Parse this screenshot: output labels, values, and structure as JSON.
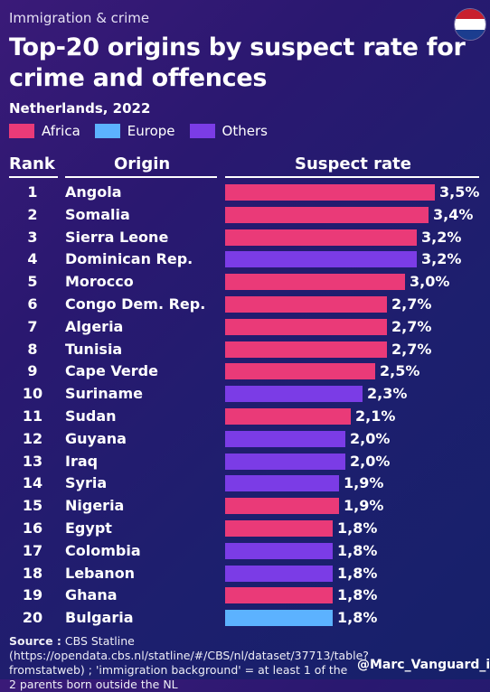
{
  "header": {
    "supertitle": "Immigration & crime",
    "title": "Top-20 origins by suspect rate for crime and offences",
    "subtitle": "Netherlands, 2022"
  },
  "legend": [
    {
      "label": "Africa",
      "color": "#ea3a78"
    },
    {
      "label": "Europe",
      "color": "#5cb2ff"
    },
    {
      "label": "Others",
      "color": "#7b3ce6"
    }
  ],
  "columns": {
    "rank": "Rank",
    "origin": "Origin",
    "rate": "Suspect rate"
  },
  "chart_data": {
    "type": "bar",
    "orientation": "horizontal",
    "title": "Top-20 origins by suspect rate for crime and offences",
    "unit": "%",
    "xlim": [
      0,
      3.5
    ],
    "rows": [
      {
        "rank": "1",
        "origin": "Angola",
        "value": 3.5,
        "label": "3,5%",
        "group": "Africa"
      },
      {
        "rank": "2",
        "origin": "Somalia",
        "value": 3.4,
        "label": "3,4%",
        "group": "Africa"
      },
      {
        "rank": "3",
        "origin": "Sierra Leone",
        "value": 3.2,
        "label": "3,2%",
        "group": "Africa"
      },
      {
        "rank": "4",
        "origin": "Dominican Rep.",
        "value": 3.2,
        "label": "3,2%",
        "group": "Others"
      },
      {
        "rank": "5",
        "origin": "Morocco",
        "value": 3.0,
        "label": "3,0%",
        "group": "Africa"
      },
      {
        "rank": "6",
        "origin": "Congo Dem. Rep.",
        "value": 2.7,
        "label": "2,7%",
        "group": "Africa"
      },
      {
        "rank": "7",
        "origin": "Algeria",
        "value": 2.7,
        "label": "2,7%",
        "group": "Africa"
      },
      {
        "rank": "8",
        "origin": "Tunisia",
        "value": 2.7,
        "label": "2,7%",
        "group": "Africa"
      },
      {
        "rank": "9",
        "origin": "Cape Verde",
        "value": 2.5,
        "label": "2,5%",
        "group": "Africa"
      },
      {
        "rank": "10",
        "origin": "Suriname",
        "value": 2.3,
        "label": "2,3%",
        "group": "Others"
      },
      {
        "rank": "11",
        "origin": "Sudan",
        "value": 2.1,
        "label": "2,1%",
        "group": "Africa"
      },
      {
        "rank": "12",
        "origin": "Guyana",
        "value": 2.0,
        "label": "2,0%",
        "group": "Others"
      },
      {
        "rank": "13",
        "origin": "Iraq",
        "value": 2.0,
        "label": "2,0%",
        "group": "Others"
      },
      {
        "rank": "14",
        "origin": "Syria",
        "value": 1.9,
        "label": "1,9%",
        "group": "Others"
      },
      {
        "rank": "15",
        "origin": "Nigeria",
        "value": 1.9,
        "label": "1,9%",
        "group": "Africa"
      },
      {
        "rank": "16",
        "origin": "Egypt",
        "value": 1.8,
        "label": "1,8%",
        "group": "Africa"
      },
      {
        "rank": "17",
        "origin": "Colombia",
        "value": 1.8,
        "label": "1,8%",
        "group": "Others"
      },
      {
        "rank": "18",
        "origin": "Lebanon",
        "value": 1.8,
        "label": "1,8%",
        "group": "Others"
      },
      {
        "rank": "19",
        "origin": "Ghana",
        "value": 1.8,
        "label": "1,8%",
        "group": "Africa"
      },
      {
        "rank": "20",
        "origin": "Bulgaria",
        "value": 1.8,
        "label": "1,8%",
        "group": "Europe"
      }
    ]
  },
  "footer": {
    "source_label": "Source :",
    "source_text": " CBS Statline (https://opendata.cbs.nl/statline/#/CBS/nl/dataset/37713/table?fromstatweb) ; 'immigration background' = at least 1 of the 2 parents born outside the NL",
    "handle": "@Marc_Vanguard_i"
  },
  "icons": {
    "flag": "netherlands-flag-icon"
  }
}
